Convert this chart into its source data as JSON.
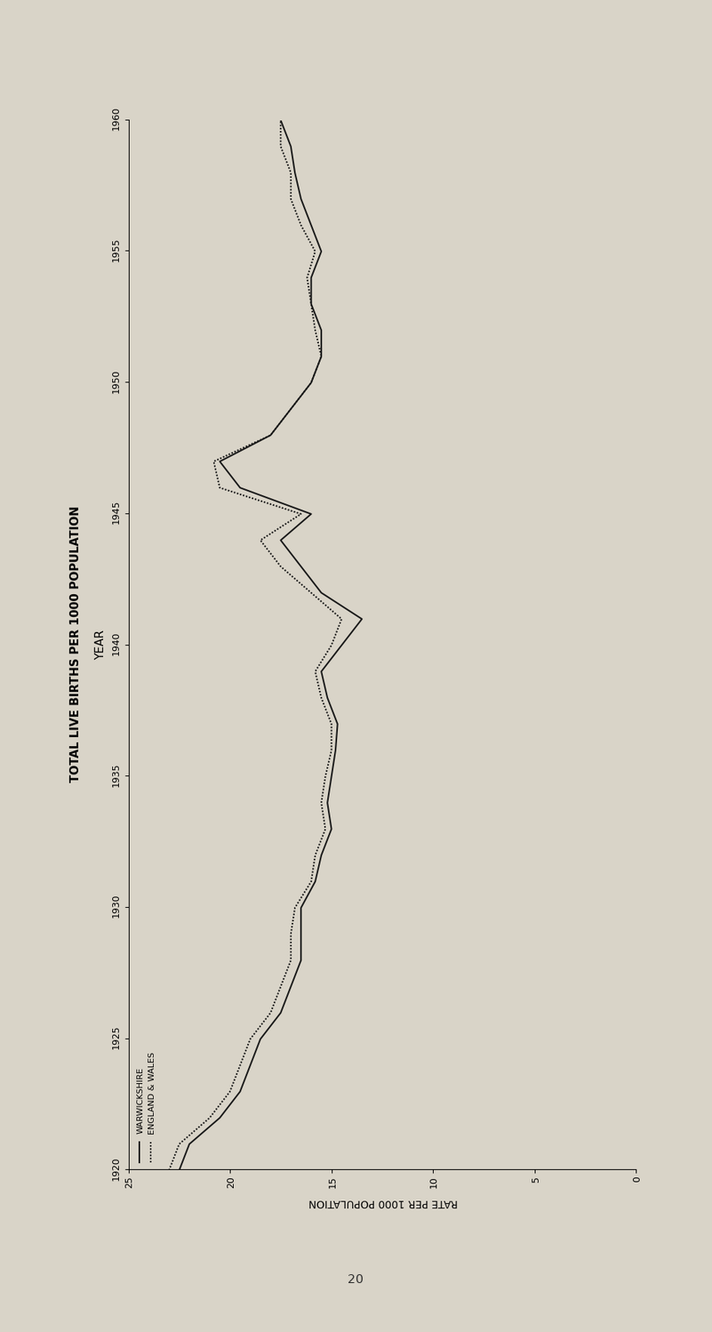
{
  "title": "TOTAL LIVE BIRTHS PER 1000 POPULATION",
  "xlabel": "RATE PER 1000 POPULATION",
  "ylabel": "YEAR",
  "xlim": [
    0,
    25
  ],
  "ylim": [
    1920,
    1960
  ],
  "yticks": [
    1920,
    1925,
    1930,
    1935,
    1940,
    1945,
    1950,
    1955,
    1960
  ],
  "xticks": [
    0,
    5,
    10,
    15,
    20,
    25
  ],
  "background_color": "#d9d4c8",
  "warwickshire": {
    "years": [
      1920,
      1921,
      1922,
      1923,
      1924,
      1925,
      1926,
      1927,
      1928,
      1929,
      1930,
      1931,
      1932,
      1933,
      1934,
      1935,
      1936,
      1937,
      1938,
      1939,
      1940,
      1941,
      1942,
      1943,
      1944,
      1945,
      1946,
      1947,
      1948,
      1949,
      1950,
      1951,
      1952,
      1953,
      1954,
      1955,
      1956,
      1957,
      1958,
      1959,
      1960
    ],
    "values": [
      22.5,
      22.0,
      20.5,
      19.5,
      19.0,
      18.5,
      17.5,
      17.0,
      16.5,
      16.5,
      16.5,
      15.8,
      15.5,
      15.0,
      15.2,
      15.0,
      14.8,
      14.7,
      15.2,
      15.5,
      14.5,
      13.5,
      15.5,
      16.5,
      17.5,
      16.0,
      19.5,
      20.5,
      18.0,
      17.0,
      16.0,
      15.5,
      15.5,
      16.0,
      16.0,
      15.5,
      16.0,
      16.5,
      16.8,
      17.0,
      17.5
    ],
    "color": "#1a1a1a",
    "linewidth": 1.5,
    "label": "WARWICKSHIRE"
  },
  "england_wales": {
    "years": [
      1920,
      1921,
      1922,
      1923,
      1924,
      1925,
      1926,
      1927,
      1928,
      1929,
      1930,
      1931,
      1932,
      1933,
      1934,
      1935,
      1936,
      1937,
      1938,
      1939,
      1940,
      1941,
      1942,
      1943,
      1944,
      1945,
      1946,
      1947,
      1948,
      1949,
      1950,
      1951,
      1952,
      1953,
      1954,
      1955,
      1956,
      1957,
      1958,
      1959,
      1960
    ],
    "values": [
      23.0,
      22.5,
      21.0,
      20.0,
      19.5,
      19.0,
      18.0,
      17.5,
      17.0,
      17.0,
      16.8,
      16.0,
      15.8,
      15.3,
      15.5,
      15.3,
      15.0,
      15.0,
      15.5,
      15.8,
      15.0,
      14.5,
      16.0,
      17.5,
      18.5,
      16.5,
      20.5,
      20.8,
      18.0,
      17.0,
      16.0,
      15.5,
      15.8,
      16.0,
      16.2,
      15.8,
      16.5,
      17.0,
      17.0,
      17.5,
      17.5
    ],
    "color": "#1a1a1a",
    "linewidth": 1.5,
    "label": "ENGLAND & WALES"
  },
  "page_color": "#d9d4c8",
  "page_number": "20"
}
